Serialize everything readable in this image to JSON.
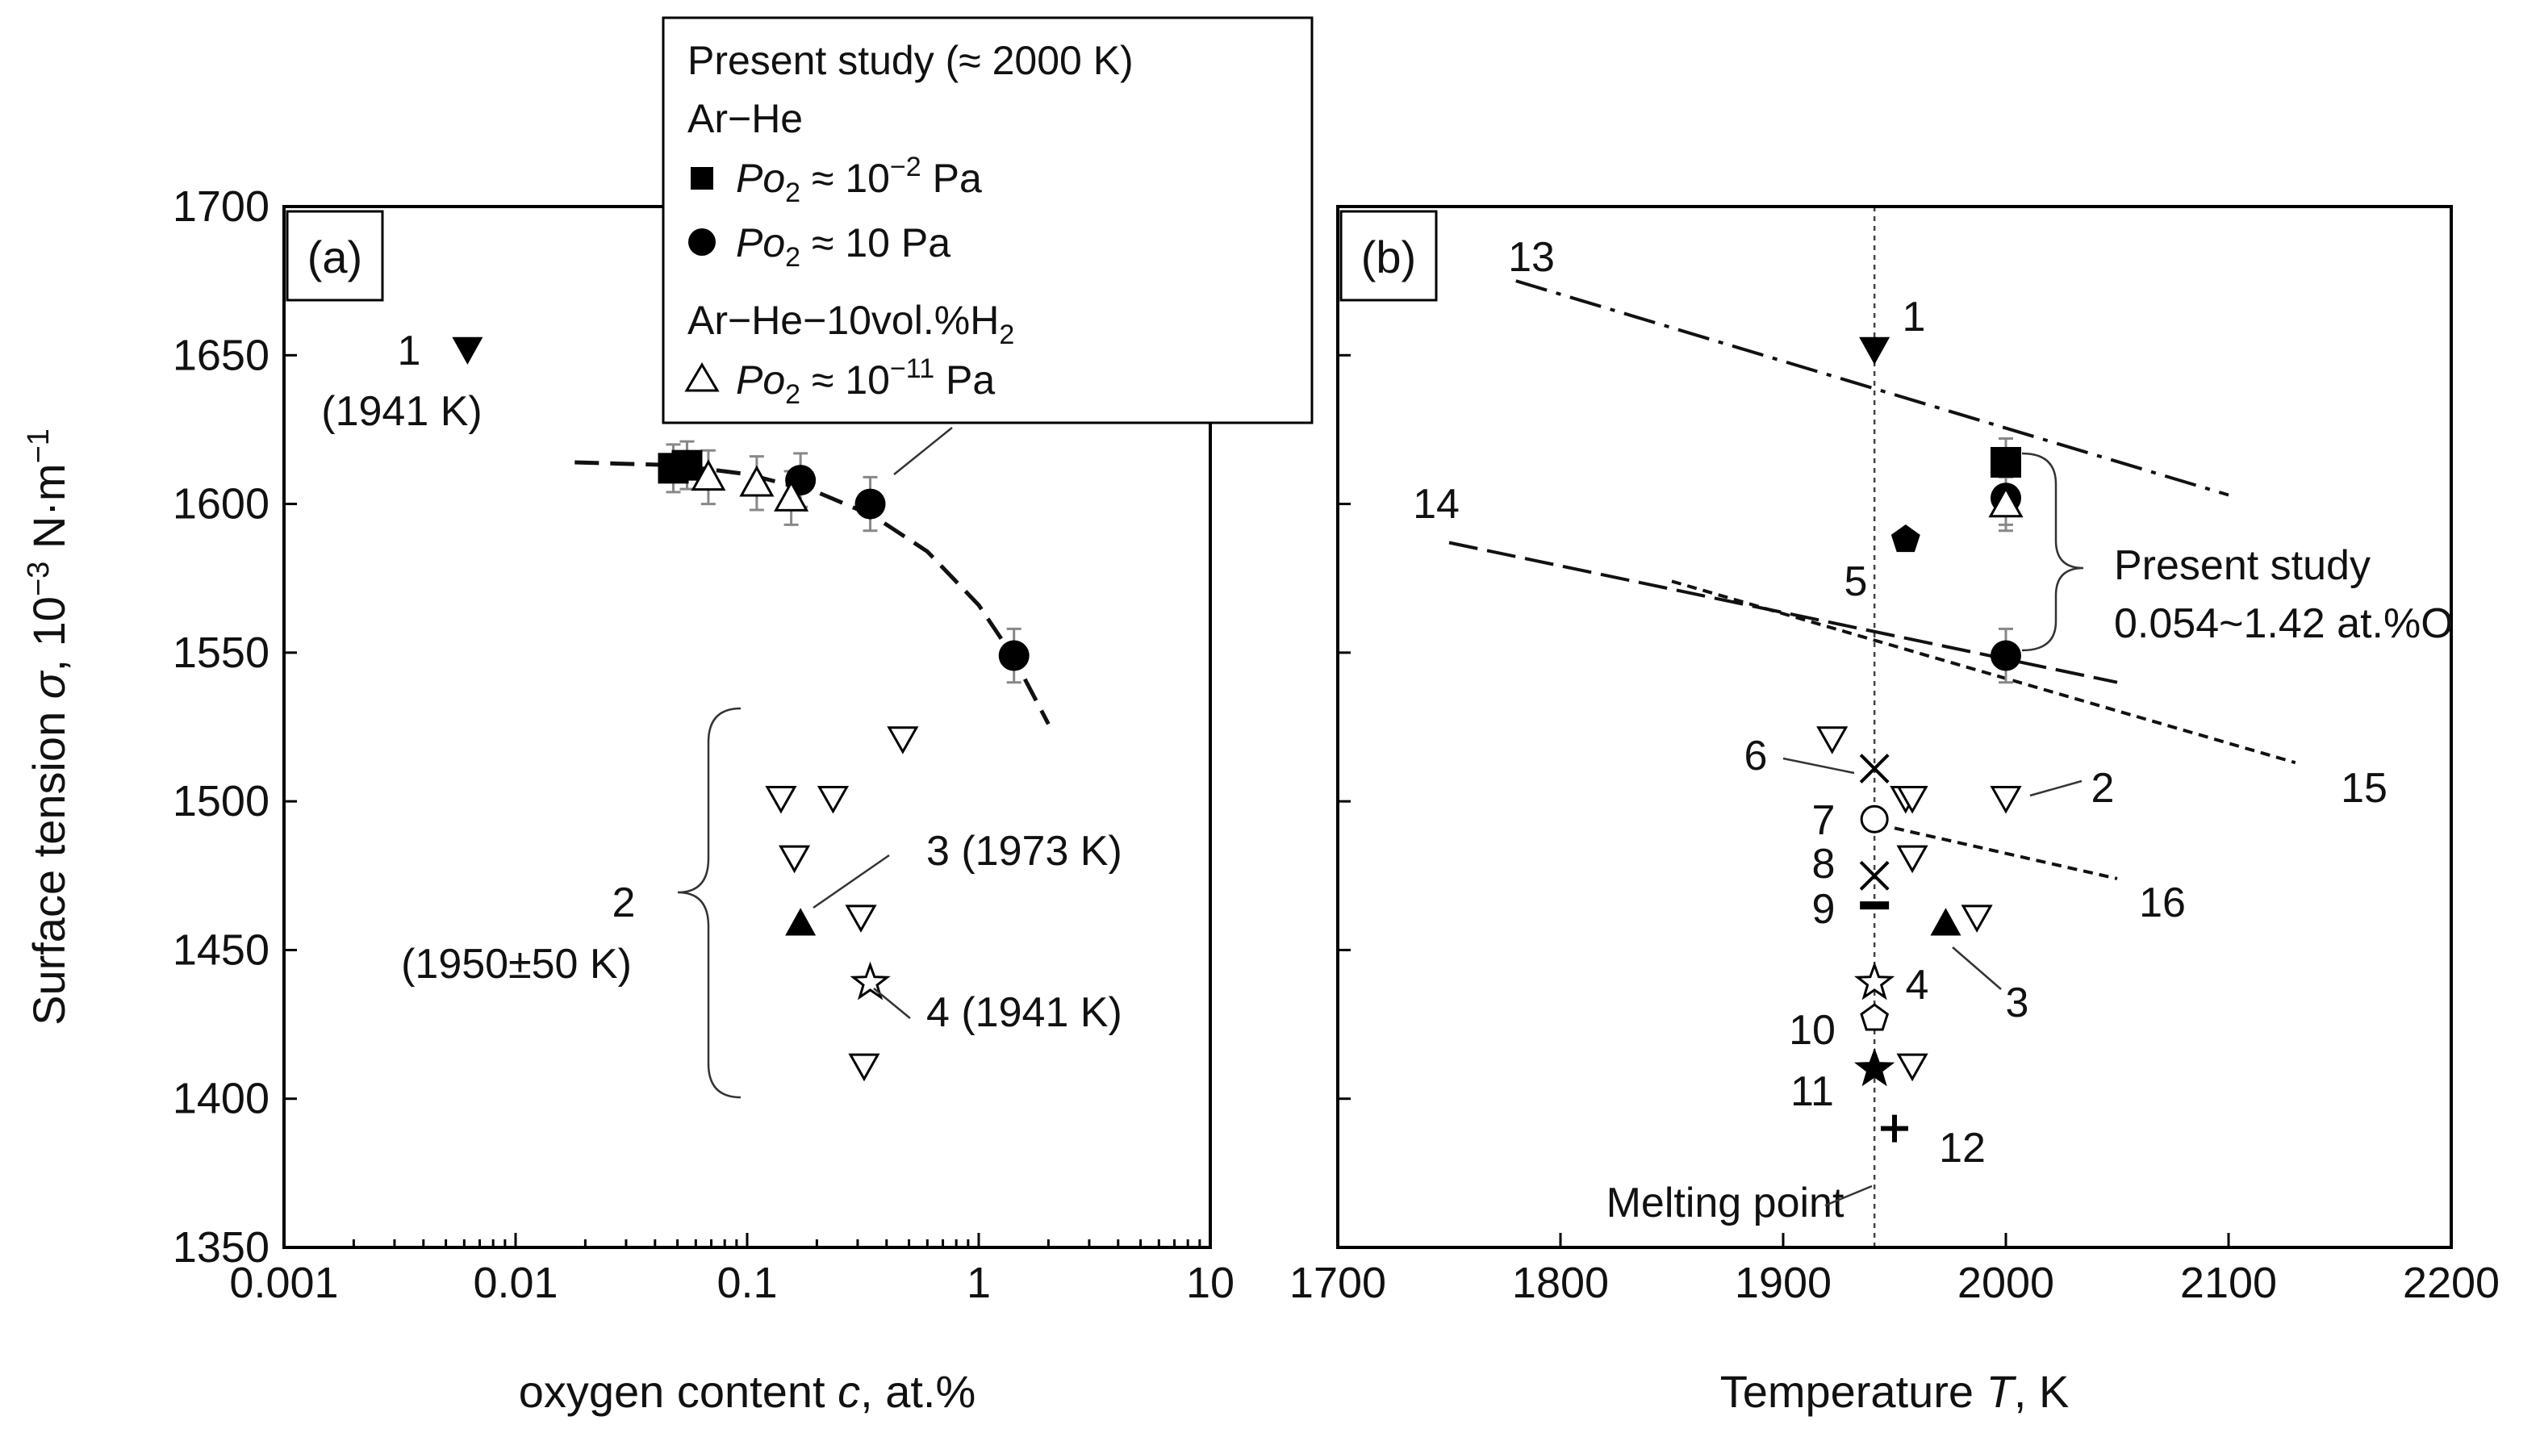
{
  "chart_data": [
    {
      "panel": "a",
      "type": "scatter",
      "panel_label": "(a)",
      "xlabel_parts": [
        "oxygen content ",
        "c",
        ", at.%"
      ],
      "ylabel_parts": [
        "Surface tension ",
        "σ",
        ", 10",
        "−3",
        " N·m",
        "−1"
      ],
      "xscale": "log",
      "xlim": [
        0.001,
        10
      ],
      "ylim": [
        1350,
        1700
      ],
      "xticks": [
        "0.001",
        "0.01",
        "0.1",
        "1",
        "10"
      ],
      "yticks": [
        1350,
        1400,
        1450,
        1500,
        1550,
        1600,
        1650,
        1700
      ],
      "series": [
        {
          "name": "Present study, Ar-He, Po2 ≈ 10^-2 Pa",
          "marker": "square-filled",
          "points": [
            {
              "x": 0.048,
              "y": 1612,
              "err": 8
            },
            {
              "x": 0.055,
              "y": 1613,
              "err": 8
            }
          ]
        },
        {
          "name": "Present study, Ar-He, Po2 ≈ 10 Pa",
          "marker": "circle-filled",
          "points": [
            {
              "x": 0.17,
              "y": 1608,
              "err": 9
            },
            {
              "x": 0.34,
              "y": 1600,
              "err": 9
            },
            {
              "x": 1.42,
              "y": 1549,
              "err": 9
            }
          ]
        },
        {
          "name": "Present study, Ar-He-10vol.%H2, Po2 ≈ 10^-11 Pa",
          "marker": "triangle-up-open",
          "points": [
            {
              "x": 0.068,
              "y": 1609,
              "err": 9
            },
            {
              "x": 0.11,
              "y": 1607,
              "err": 9
            },
            {
              "x": 0.155,
              "y": 1602,
              "err": 9
            }
          ]
        },
        {
          "name": "Ref. 2 (1950±50 K)",
          "marker": "triangle-down-open",
          "points": [
            {
              "x": 0.14,
              "y": 1501
            },
            {
              "x": 0.235,
              "y": 1501
            },
            {
              "x": 0.47,
              "y": 1521
            },
            {
              "x": 0.16,
              "y": 1481
            },
            {
              "x": 0.31,
              "y": 1461
            },
            {
              "x": 0.32,
              "y": 1411
            }
          ]
        },
        {
          "name": "Ref. 1 (1941 K)",
          "marker": "triangle-down-filled",
          "points": [
            {
              "x": 0.0062,
              "y": 1652
            }
          ]
        },
        {
          "name": "Ref. 3 (1973 K)",
          "marker": "triangle-up-filled",
          "points": [
            {
              "x": 0.17,
              "y": 1459
            }
          ]
        },
        {
          "name": "Ref. 4 (1941 K)",
          "marker": "star-open",
          "points": [
            {
              "x": 0.34,
              "y": 1439
            }
          ]
        }
      ],
      "fit_curve": {
        "style": "dashed",
        "points": [
          [
            0.018,
            1614
          ],
          [
            0.05,
            1613
          ],
          [
            0.1,
            1610
          ],
          [
            0.2,
            1604
          ],
          [
            0.35,
            1596
          ],
          [
            0.6,
            1584
          ],
          [
            1.0,
            1566
          ],
          [
            1.4,
            1549
          ],
          [
            2.0,
            1526
          ]
        ]
      },
      "annotations": {
        "ref1": "1",
        "ref1_temp": "(1941 K)",
        "ref2": "2",
        "ref2_temp": "(1950±50 K)",
        "ref3": "3 (1973 K)",
        "ref4": "4 (1941 K)"
      },
      "legend": {
        "title": "Present study (≈ 2000 K)",
        "group1": "Ar−He",
        "po2_label": "Po",
        "po2_sub": "2",
        "entry1_value": "≈ 10",
        "entry1_exp": "−2",
        "entry1_unit": " Pa",
        "entry2_value": "≈ 10 Pa",
        "group2_main": "Ar−He−10vol.%H",
        "group2_sub": "2",
        "entry3_value": "≈ 10",
        "entry3_exp": "−11",
        "entry3_unit": " Pa"
      }
    },
    {
      "panel": "b",
      "type": "scatter",
      "panel_label": "(b)",
      "xlabel_parts": [
        "Temperature ",
        "T",
        ", K"
      ],
      "xlim": [
        1700,
        2200
      ],
      "ylim": [
        1350,
        1700
      ],
      "xticks": [
        1700,
        1800,
        1900,
        2000,
        2100,
        2200
      ],
      "melting_point_K": 1941,
      "melting_point_label": "Melting point",
      "points": [
        {
          "label": "1",
          "T": 1941,
          "y": 1652,
          "marker": "triangle-down-filled"
        },
        {
          "label": "5",
          "T": 1955,
          "y": 1588,
          "marker": "pentagon-filled"
        },
        {
          "label": "6",
          "T": 1941,
          "y": 1511,
          "marker": "x"
        },
        {
          "label": "7",
          "T": 1941,
          "y": 1494,
          "marker": "circle-open"
        },
        {
          "label": "8",
          "T": 1941,
          "y": 1475,
          "marker": "x"
        },
        {
          "label": "9",
          "T": 1941,
          "y": 1465,
          "marker": "dash"
        },
        {
          "label": "4",
          "T": 1941,
          "y": 1439,
          "marker": "star-open"
        },
        {
          "label": "10",
          "T": 1941,
          "y": 1427,
          "marker": "pentagon-open"
        },
        {
          "label": "11",
          "T": 1941,
          "y": 1410,
          "marker": "star-filled"
        },
        {
          "label": "12",
          "T": 1950,
          "y": 1390,
          "marker": "plus"
        },
        {
          "label": "3",
          "T": 1973,
          "y": 1459,
          "marker": "triangle-up-filled"
        },
        {
          "label": "2",
          "T": 1922,
          "y": 1521,
          "marker": "triangle-down-open"
        },
        {
          "label": "2",
          "T": 1955,
          "y": 1501,
          "marker": "triangle-down-open"
        },
        {
          "label": "2",
          "T": 1958,
          "y": 1501,
          "marker": "triangle-down-open"
        },
        {
          "label": "2",
          "T": 1958,
          "y": 1481,
          "marker": "triangle-down-open"
        },
        {
          "label": "2",
          "T": 1987,
          "y": 1461,
          "marker": "triangle-down-open"
        },
        {
          "label": "2",
          "T": 1958,
          "y": 1411,
          "marker": "triangle-down-open"
        },
        {
          "label": "2",
          "T": 2000,
          "y": 1501,
          "marker": "triangle-down-open"
        },
        {
          "label": "present",
          "T": 2000,
          "y": 1614,
          "marker": "square-filled",
          "err": 8
        },
        {
          "label": "present",
          "T": 2000,
          "y": 1602,
          "marker": "circle-filled",
          "err": 9
        },
        {
          "label": "present",
          "T": 2000,
          "y": 1600,
          "marker": "triangle-up-open",
          "err": 9
        },
        {
          "label": "present",
          "T": 2000,
          "y": 1549,
          "marker": "circle-filled",
          "err": 9
        }
      ],
      "lines": [
        {
          "label": "13",
          "style": "dash-dot",
          "from": [
            1780,
            1675
          ],
          "to": [
            2100,
            1603
          ]
        },
        {
          "label": "14",
          "style": "long-dash",
          "from": [
            1750,
            1587
          ],
          "to": [
            2050,
            1540
          ]
        },
        {
          "label": "15",
          "style": "short-dash",
          "from": [
            1850,
            1574
          ],
          "to": [
            2130,
            1513
          ]
        },
        {
          "label": "16",
          "style": "short-dash",
          "from": [
            1950,
            1491
          ],
          "to": [
            2050,
            1474
          ]
        }
      ],
      "brace_label_line1": "Present study",
      "brace_label_line2": "0.054~1.42 at.%O"
    }
  ]
}
